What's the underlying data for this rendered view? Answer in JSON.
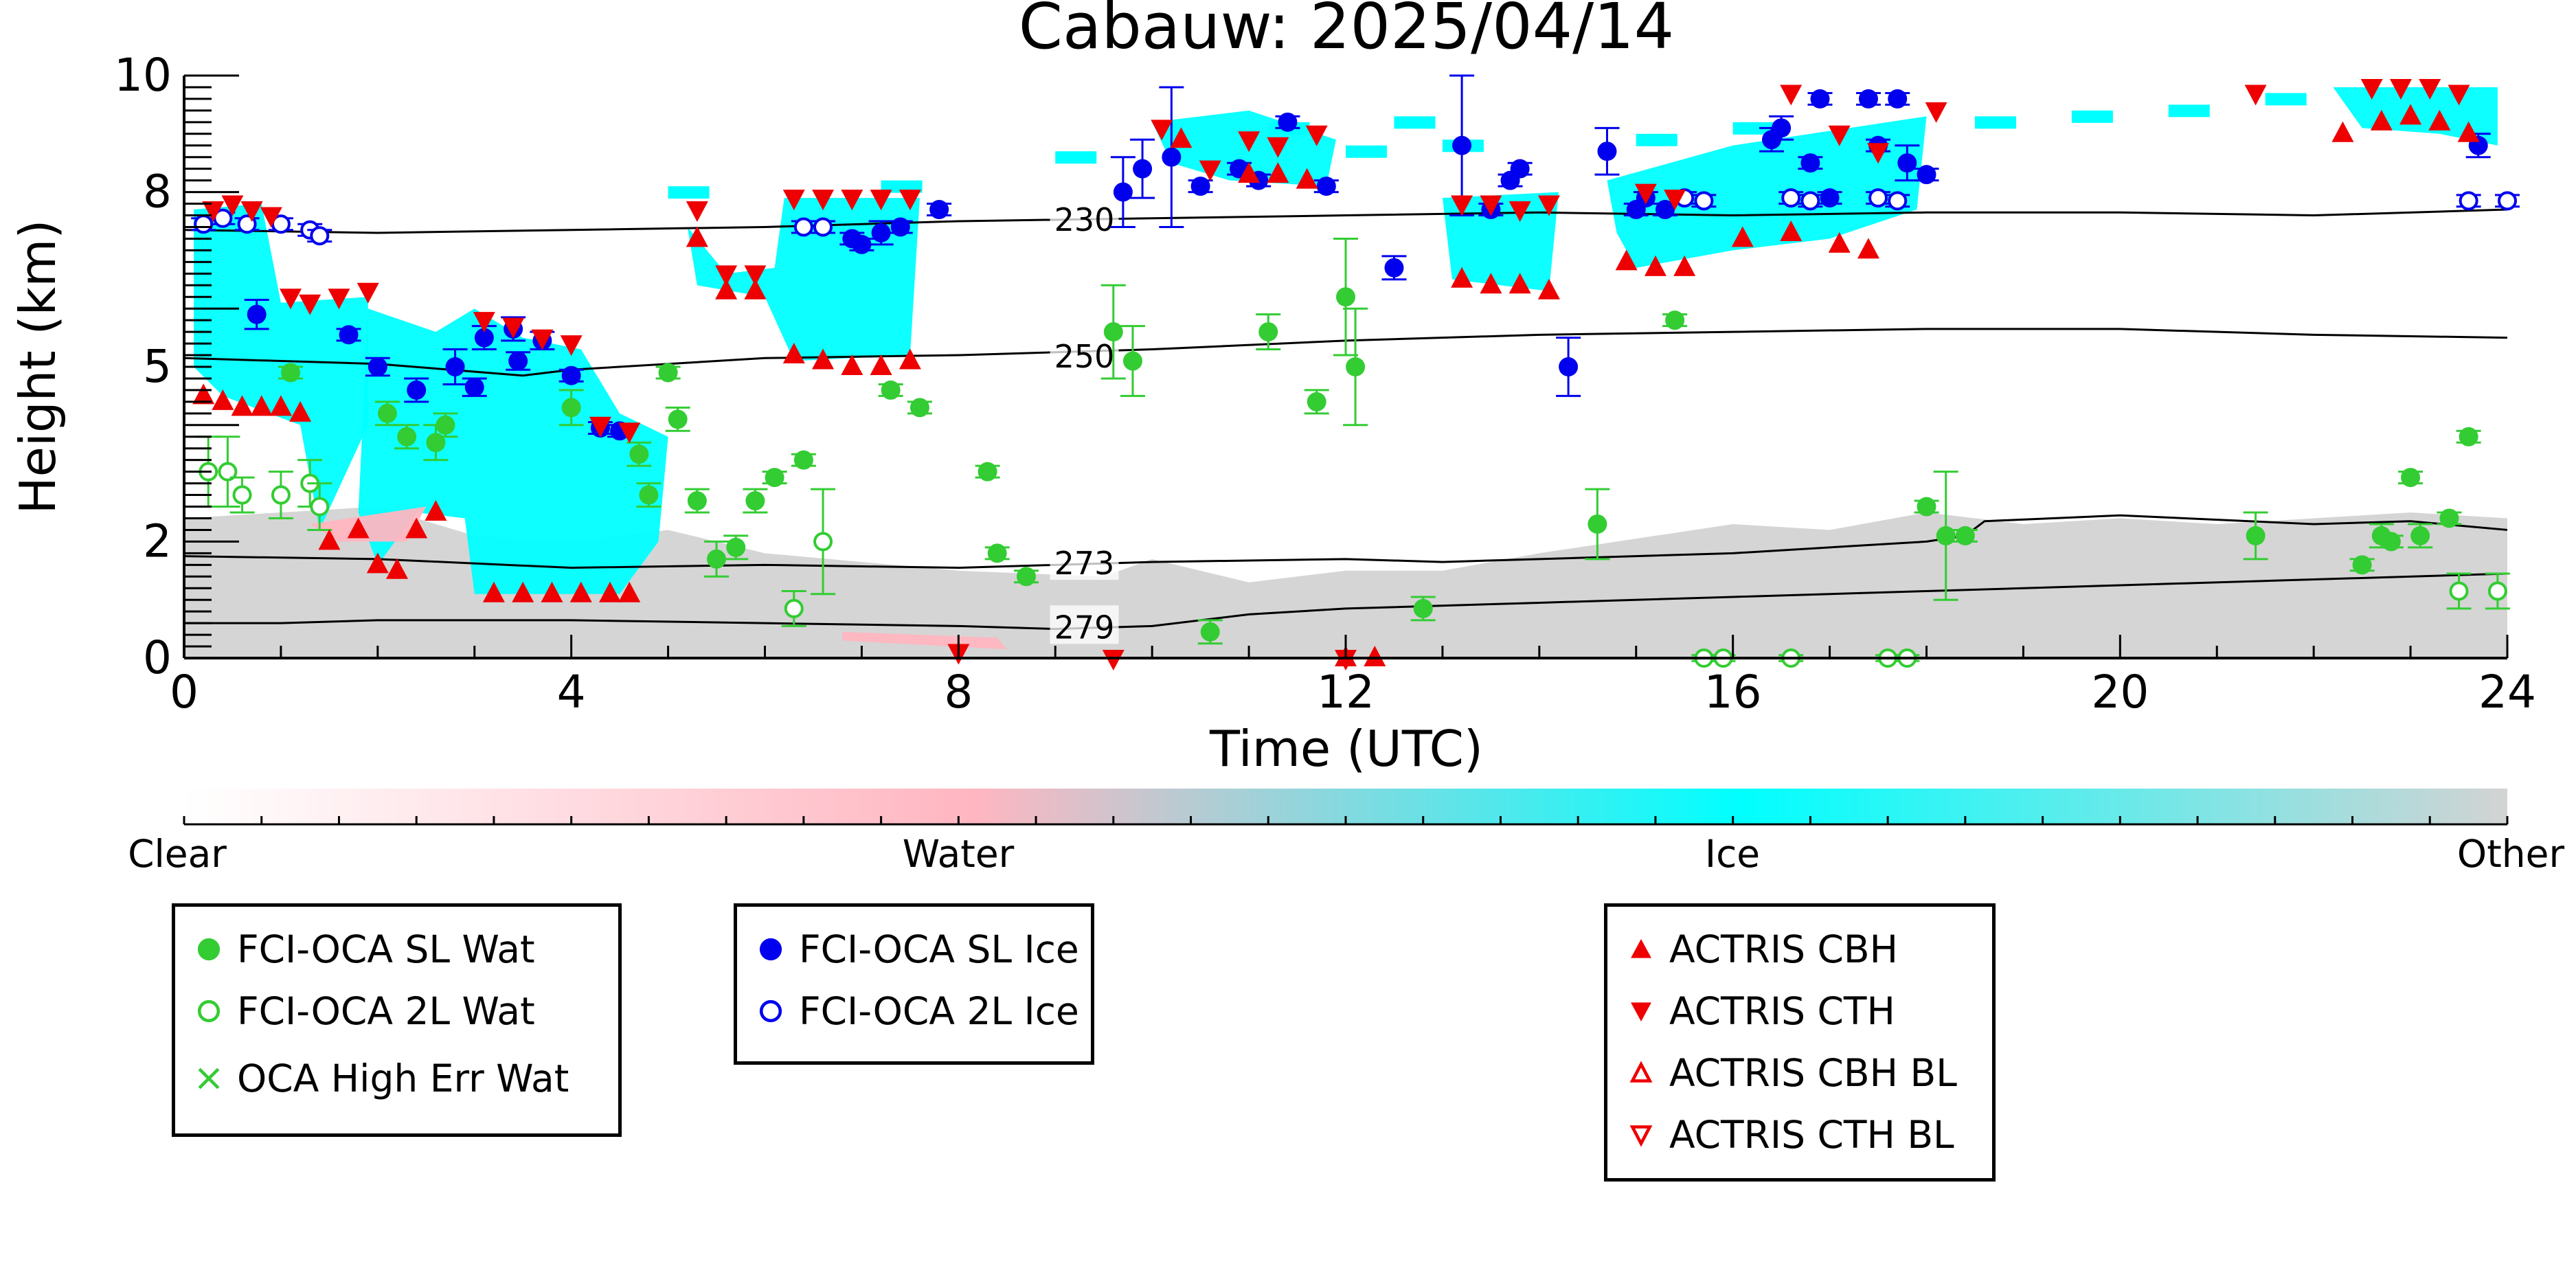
{
  "chart_data": {
    "type": "scatter",
    "title": "Cabauw: 2025/04/14",
    "xlabel": "Time (UTC)",
    "ylabel": "Height (km)",
    "xlim": [
      0,
      24
    ],
    "ylim": [
      0,
      10
    ],
    "x_ticks": [
      "0",
      "4",
      "8",
      "12",
      "16",
      "20",
      "24"
    ],
    "y_ticks": [
      "0",
      "2",
      "5",
      "8",
      "10"
    ],
    "grid": false,
    "colorbar": {
      "labels": [
        "Clear",
        "Water",
        "Ice",
        "Other"
      ],
      "colors": [
        "#ffffff",
        "#ffb6c1",
        "#00ffff",
        "#d3d3d3"
      ]
    },
    "isotherms": [
      {
        "label": "230",
        "x": [
          0,
          2,
          4,
          6,
          8,
          10,
          12,
          14,
          16,
          18,
          20,
          22,
          24
        ],
        "y": [
          7.35,
          7.3,
          7.35,
          7.4,
          7.5,
          7.55,
          7.6,
          7.65,
          7.6,
          7.65,
          7.65,
          7.6,
          7.7
        ]
      },
      {
        "label": "250",
        "x": [
          0,
          2,
          3.5,
          4,
          6,
          8,
          10,
          12,
          14,
          16,
          18,
          20,
          22,
          24
        ],
        "y": [
          5.15,
          5.05,
          4.85,
          4.95,
          5.15,
          5.2,
          5.3,
          5.45,
          5.55,
          5.6,
          5.65,
          5.65,
          5.55,
          5.5
        ]
      },
      {
        "label": "273",
        "x": [
          0,
          2,
          4,
          6,
          8,
          10,
          12,
          13,
          14,
          16,
          17,
          18,
          18.4,
          18.6,
          20,
          22,
          23,
          24
        ],
        "y": [
          1.75,
          1.7,
          1.55,
          1.6,
          1.55,
          1.65,
          1.7,
          1.65,
          1.7,
          1.8,
          1.9,
          2.0,
          2.1,
          2.35,
          2.45,
          2.3,
          2.35,
          2.2
        ]
      },
      {
        "label": "279",
        "x": [
          0,
          1,
          2,
          4,
          6,
          8,
          9,
          10,
          11,
          12,
          14,
          16,
          18,
          20,
          22,
          24
        ],
        "y": [
          0.6,
          0.6,
          0.65,
          0.65,
          0.6,
          0.55,
          0.5,
          0.55,
          0.75,
          0.85,
          0.95,
          1.05,
          1.15,
          1.25,
          1.35,
          1.45
        ]
      }
    ],
    "series": [
      {
        "name": "FCI-OCA SL Wat",
        "color": "#33cc33",
        "marker": "filled-circle",
        "points": [
          [
            1.1,
            4.9,
            0.1
          ],
          [
            2.1,
            4.2,
            0.2
          ],
          [
            2.3,
            3.8,
            0.2
          ],
          [
            2.6,
            3.7,
            0.3
          ],
          [
            2.7,
            4.0,
            0.2
          ],
          [
            4.0,
            4.3,
            0.3
          ],
          [
            4.7,
            3.5,
            0.2
          ],
          [
            4.8,
            2.8,
            0.2
          ],
          [
            5.0,
            4.9,
            0.1
          ],
          [
            5.1,
            4.1,
            0.2
          ],
          [
            5.3,
            2.7,
            0.2
          ],
          [
            5.5,
            1.7,
            0.3
          ],
          [
            5.7,
            1.9,
            0.2
          ],
          [
            5.9,
            2.7,
            0.2
          ],
          [
            6.1,
            3.1,
            0.1
          ],
          [
            6.4,
            3.4,
            0.1
          ],
          [
            7.3,
            4.6,
            0.1
          ],
          [
            7.6,
            4.3,
            0.1
          ],
          [
            8.3,
            3.2,
            0.1
          ],
          [
            8.4,
            1.8,
            0.1
          ],
          [
            8.7,
            1.4,
            0.1
          ],
          [
            9.6,
            5.6,
            0.8
          ],
          [
            9.8,
            5.1,
            0.6
          ],
          [
            10.6,
            0.45,
            0.2
          ],
          [
            11.2,
            5.6,
            0.3
          ],
          [
            11.7,
            4.4,
            0.2
          ],
          [
            12.0,
            6.2,
            1.0
          ],
          [
            12.1,
            5.0,
            1.0
          ],
          [
            12.8,
            0.85,
            0.2
          ],
          [
            15.4,
            5.8,
            0.1
          ],
          [
            14.6,
            2.3,
            0.6
          ],
          [
            18.0,
            2.6,
            0.1
          ],
          [
            18.2,
            2.1,
            1.1
          ],
          [
            18.4,
            2.1,
            0.1
          ],
          [
            21.4,
            2.1,
            0.4
          ],
          [
            22.5,
            1.6,
            0.1
          ],
          [
            22.7,
            2.1,
            0.2
          ],
          [
            22.8,
            2.0,
            0.1
          ],
          [
            23.0,
            3.1,
            0.1
          ],
          [
            23.1,
            2.1,
            0.2
          ],
          [
            23.4,
            2.4,
            0.1
          ],
          [
            23.6,
            3.8,
            0.1
          ]
        ]
      },
      {
        "name": "FCI-OCA 2L Wat",
        "color": "#33cc33",
        "marker": "open-circle",
        "points": [
          [
            0.25,
            3.2,
            0.6
          ],
          [
            0.45,
            3.2,
            0.6
          ],
          [
            0.6,
            2.8,
            0.3
          ],
          [
            1.0,
            2.8,
            0.4
          ],
          [
            1.3,
            3.0,
            0.4
          ],
          [
            1.4,
            2.6,
            0.4
          ],
          [
            6.3,
            0.85,
            0.3
          ],
          [
            6.6,
            2.0,
            0.9
          ],
          [
            15.7,
            0.0,
            0.05
          ],
          [
            15.9,
            0.0,
            0.05
          ],
          [
            16.6,
            0.0,
            0.05
          ],
          [
            17.6,
            0.0,
            0.05
          ],
          [
            17.8,
            0.0,
            0.05
          ],
          [
            23.5,
            1.15,
            0.3
          ],
          [
            23.9,
            1.15,
            0.3
          ]
        ]
      },
      {
        "name": "OCA High Err Wat",
        "color": "#33cc33",
        "marker": "x",
        "points": []
      },
      {
        "name": "FCI-OCA SL Ice",
        "color": "#0000ee",
        "marker": "filled-circle",
        "points": [
          [
            0.75,
            5.9,
            0.25
          ],
          [
            1.7,
            5.55,
            0.1
          ],
          [
            2.0,
            5.0,
            0.15
          ],
          [
            2.4,
            4.6,
            0.2
          ],
          [
            2.8,
            5.0,
            0.3
          ],
          [
            3.0,
            4.65,
            0.15
          ],
          [
            3.1,
            5.5,
            0.2
          ],
          [
            3.4,
            5.65,
            0.2
          ],
          [
            3.45,
            5.1,
            0.15
          ],
          [
            3.7,
            5.45,
            0.15
          ],
          [
            4.0,
            4.85,
            0.1
          ],
          [
            4.3,
            3.95,
            0.1
          ],
          [
            4.5,
            3.9,
            0.1
          ],
          [
            6.9,
            7.2,
            0.1
          ],
          [
            7.0,
            7.1,
            0.1
          ],
          [
            7.2,
            7.3,
            0.2
          ],
          [
            7.4,
            7.4,
            0.1
          ],
          [
            7.8,
            7.7,
            0.1
          ],
          [
            9.7,
            8.0,
            0.6
          ],
          [
            9.9,
            8.4,
            0.5
          ],
          [
            10.2,
            8.6,
            1.2
          ],
          [
            10.5,
            8.1,
            0.1
          ],
          [
            10.9,
            8.4,
            0.1
          ],
          [
            11.1,
            8.2,
            0.1
          ],
          [
            11.4,
            9.2,
            0.1
          ],
          [
            11.8,
            8.1,
            0.1
          ],
          [
            12.5,
            6.7,
            0.2
          ],
          [
            13.2,
            8.8,
            1.2
          ],
          [
            13.5,
            7.7,
            0.1
          ],
          [
            13.7,
            8.2,
            0.1
          ],
          [
            13.8,
            8.4,
            0.1
          ],
          [
            14.3,
            5.0,
            0.5
          ],
          [
            14.7,
            8.7,
            0.4
          ],
          [
            15.0,
            7.7,
            0.1
          ],
          [
            15.1,
            7.9,
            0.1
          ],
          [
            15.3,
            7.7,
            0.1
          ],
          [
            16.4,
            8.9,
            0.2
          ],
          [
            16.5,
            9.1,
            0.2
          ],
          [
            16.8,
            8.5,
            0.1
          ],
          [
            16.9,
            9.6,
            0.1
          ],
          [
            17.0,
            7.9,
            0.1
          ],
          [
            17.4,
            9.6,
            0.1
          ],
          [
            17.5,
            8.8,
            0.1
          ],
          [
            17.7,
            9.6,
            0.1
          ],
          [
            17.8,
            8.5,
            0.3
          ],
          [
            18.0,
            8.3,
            0.1
          ],
          [
            23.7,
            8.8,
            0.2
          ]
        ]
      },
      {
        "name": "FCI-OCA 2L Ice",
        "color": "#0000ee",
        "marker": "open-circle",
        "points": [
          [
            0.2,
            7.45,
            0.1
          ],
          [
            0.4,
            7.55,
            0.1
          ],
          [
            0.65,
            7.45,
            0.1
          ],
          [
            1.0,
            7.45,
            0.1
          ],
          [
            1.3,
            7.35,
            0.1
          ],
          [
            1.4,
            7.25,
            0.1
          ],
          [
            6.4,
            7.4,
            0.1
          ],
          [
            6.6,
            7.4,
            0.1
          ],
          [
            15.5,
            7.9,
            0.1
          ],
          [
            15.7,
            7.85,
            0.1
          ],
          [
            16.6,
            7.9,
            0.1
          ],
          [
            16.8,
            7.85,
            0.1
          ],
          [
            17.5,
            7.9,
            0.1
          ],
          [
            17.7,
            7.85,
            0.1
          ],
          [
            23.6,
            7.85,
            0.1
          ],
          [
            24.0,
            7.85,
            0.1
          ]
        ]
      },
      {
        "name": "ACTRIS CBH",
        "color": "#ee0000",
        "marker": "triangle-up",
        "points": [
          [
            0.2,
            4.5
          ],
          [
            0.4,
            4.4
          ],
          [
            0.6,
            4.3
          ],
          [
            0.8,
            4.3
          ],
          [
            1.0,
            4.3
          ],
          [
            1.2,
            4.2
          ],
          [
            1.5,
            2.0
          ],
          [
            1.8,
            2.2
          ],
          [
            2.0,
            1.6
          ],
          [
            2.2,
            1.5
          ],
          [
            2.4,
            2.2
          ],
          [
            2.6,
            2.5
          ],
          [
            3.2,
            1.1
          ],
          [
            3.5,
            1.1
          ],
          [
            3.8,
            1.1
          ],
          [
            4.1,
            1.1
          ],
          [
            4.4,
            1.1
          ],
          [
            4.6,
            1.1
          ],
          [
            5.3,
            7.2
          ],
          [
            5.6,
            6.3
          ],
          [
            5.9,
            6.3
          ],
          [
            6.3,
            5.2
          ],
          [
            6.6,
            5.1
          ],
          [
            6.9,
            5.0
          ],
          [
            7.2,
            5.0
          ],
          [
            7.5,
            5.1
          ],
          [
            10.3,
            8.9
          ],
          [
            11.0,
            8.3
          ],
          [
            11.3,
            8.3
          ],
          [
            11.6,
            8.2
          ],
          [
            12.0,
            0.0
          ],
          [
            12.3,
            0.0
          ],
          [
            13.2,
            6.5
          ],
          [
            13.5,
            6.4
          ],
          [
            13.8,
            6.4
          ],
          [
            14.1,
            6.3
          ],
          [
            14.9,
            6.8
          ],
          [
            15.2,
            6.7
          ],
          [
            15.5,
            6.7
          ],
          [
            16.1,
            7.2
          ],
          [
            16.6,
            7.3
          ],
          [
            17.1,
            7.1
          ],
          [
            17.4,
            7.0
          ],
          [
            22.3,
            9.0
          ],
          [
            22.7,
            9.2
          ],
          [
            23.0,
            9.3
          ],
          [
            23.3,
            9.2
          ],
          [
            23.6,
            9.0
          ]
        ]
      },
      {
        "name": "ACTRIS CTH",
        "color": "#ee0000",
        "marker": "triangle-down",
        "points": [
          [
            0.3,
            7.7
          ],
          [
            0.5,
            7.8
          ],
          [
            0.7,
            7.7
          ],
          [
            0.9,
            7.6
          ],
          [
            1.1,
            6.2
          ],
          [
            1.3,
            6.1
          ],
          [
            1.6,
            6.2
          ],
          [
            1.9,
            6.3
          ],
          [
            3.1,
            5.8
          ],
          [
            3.4,
            5.7
          ],
          [
            3.7,
            5.5
          ],
          [
            4.0,
            5.4
          ],
          [
            4.3,
            4.0
          ],
          [
            4.6,
            3.9
          ],
          [
            5.3,
            7.7
          ],
          [
            5.6,
            6.6
          ],
          [
            5.9,
            6.6
          ],
          [
            6.3,
            7.9
          ],
          [
            6.6,
            7.9
          ],
          [
            6.9,
            7.9
          ],
          [
            7.2,
            7.9
          ],
          [
            7.5,
            7.9
          ],
          [
            8.0,
            0.1
          ],
          [
            9.6,
            0.0
          ],
          [
            10.1,
            9.1
          ],
          [
            10.6,
            8.4
          ],
          [
            11.0,
            8.9
          ],
          [
            11.3,
            8.8
          ],
          [
            11.7,
            9.0
          ],
          [
            12.0,
            0.0
          ],
          [
            13.2,
            7.8
          ],
          [
            13.5,
            7.8
          ],
          [
            13.8,
            7.7
          ],
          [
            14.1,
            7.8
          ],
          [
            15.1,
            8.0
          ],
          [
            15.4,
            7.9
          ],
          [
            16.6,
            9.7
          ],
          [
            17.1,
            9.0
          ],
          [
            17.5,
            8.7
          ],
          [
            18.1,
            9.4
          ],
          [
            21.4,
            9.7
          ],
          [
            22.6,
            9.8
          ],
          [
            22.9,
            9.8
          ],
          [
            23.2,
            9.8
          ],
          [
            23.5,
            9.7
          ]
        ]
      },
      {
        "name": "ACTRIS CBH BL",
        "color": "#ee0000",
        "marker": "open-triangle-up",
        "points": []
      },
      {
        "name": "ACTRIS CTH BL",
        "color": "#ee0000",
        "marker": "open-triangle-down",
        "points": []
      }
    ]
  },
  "legend_groups": {
    "water": [
      "FCI-OCA SL Wat",
      "FCI-OCA 2L Wat",
      "OCA High Err Wat"
    ],
    "ice": [
      "FCI-OCA SL Ice",
      "FCI-OCA 2L Ice"
    ],
    "actris": [
      "ACTRIS CBH",
      "ACTRIS CTH",
      "ACTRIS CBH BL",
      "ACTRIS CTH BL"
    ]
  }
}
